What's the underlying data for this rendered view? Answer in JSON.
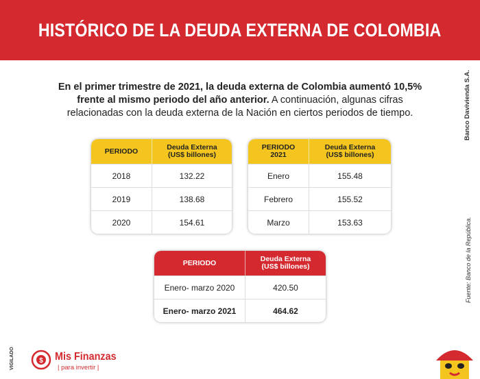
{
  "header": {
    "title": "HISTÓRICO DE LA DEUDA EXTERNA DE COLOMBIA"
  },
  "intro": {
    "bold": "En el primer trimestre de 2021, la deuda externa de Colombia aumentó 10,5% frente al mismo periodo del año anterior.",
    "text": " A continuación, algunas cifras relacionadas con la deuda externa de la Nación en ciertos periodos de tiempo."
  },
  "tables": [
    {
      "header": [
        "PERIODO",
        "Deuda Externa\n(US$ billones)"
      ],
      "rows": [
        [
          "2018",
          "132.22"
        ],
        [
          "2019",
          "138.68"
        ],
        [
          "2020",
          "154.61"
        ]
      ]
    },
    {
      "header": [
        "PERIODO\n2021",
        "Deuda Externa\n(US$ billones)"
      ],
      "rows": [
        [
          "Enero",
          "155.48"
        ],
        [
          "Febrero",
          "155.52"
        ],
        [
          "Marzo",
          "153.63"
        ]
      ]
    },
    {
      "header": [
        "PERIODO",
        "Deuda Externa\n(US$ billones)"
      ],
      "rows": [
        [
          "Enero- marzo 2020",
          "420.50"
        ],
        [
          "Enero- marzo 2021",
          "464.62"
        ]
      ]
    }
  ],
  "side": {
    "credit": "Banco Davivienda S.A.",
    "source": "Fuente:  Banco de la República."
  },
  "footer": {
    "vigilado": "VIGILADO",
    "brand": "Mis Finanzas",
    "tagline": "|  para invertir  |"
  }
}
